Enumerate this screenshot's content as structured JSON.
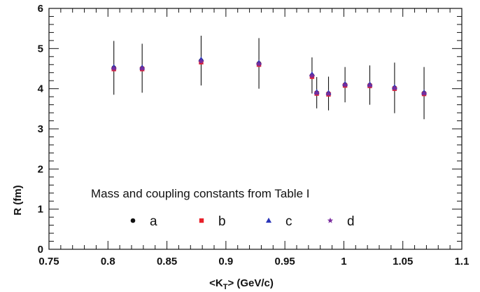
{
  "chart_data": {
    "type": "scatter",
    "title": "",
    "xlabel": "<K_T> (GeV/c)",
    "xlabel_parts": {
      "before": "<K",
      "sub": "T",
      "after": "> (GeV/c)"
    },
    "ylabel": "R (fm)",
    "xlim": [
      0.75,
      1.1
    ],
    "ylim": [
      0,
      6
    ],
    "xticks": [
      "0.75",
      "0.8",
      "0.85",
      "0.9",
      "0.95",
      "1",
      "1.05",
      "1.1"
    ],
    "yticks": [
      "0",
      "1",
      "2",
      "3",
      "4",
      "5",
      "6"
    ],
    "grid": false,
    "legend": {
      "title": "Mass and coupling constants from Table I",
      "placement": "bottom-center",
      "entries": [
        "a",
        "b",
        "c",
        "d"
      ]
    },
    "x": [
      0.805,
      0.829,
      0.879,
      0.928,
      0.973,
      0.977,
      0.987,
      1.001,
      1.022,
      1.043,
      1.068
    ],
    "error": [
      0.67,
      0.61,
      0.62,
      0.63,
      0.45,
      0.39,
      0.42,
      0.44,
      0.49,
      0.63,
      0.65
    ],
    "series": [
      {
        "name": "a",
        "marker": "circle",
        "color": "#111111",
        "values": [
          4.52,
          4.51,
          4.7,
          4.63,
          4.33,
          3.9,
          3.88,
          4.1,
          4.09,
          4.02,
          3.89
        ]
      },
      {
        "name": "b",
        "marker": "square",
        "color": "#e8202a",
        "values": [
          4.49,
          4.49,
          4.66,
          4.6,
          4.3,
          3.88,
          3.86,
          4.08,
          4.07,
          4.0,
          3.87
        ]
      },
      {
        "name": "c",
        "marker": "triangle",
        "color": "#2a35b8",
        "values": [
          4.54,
          4.53,
          4.73,
          4.65,
          4.36,
          3.92,
          3.9,
          4.12,
          4.11,
          4.04,
          3.91
        ]
      },
      {
        "name": "d",
        "marker": "star",
        "color": "#7a2c9e",
        "values": [
          4.5,
          4.5,
          4.68,
          4.61,
          4.32,
          3.89,
          3.87,
          4.09,
          4.08,
          4.01,
          3.88
        ]
      }
    ]
  }
}
